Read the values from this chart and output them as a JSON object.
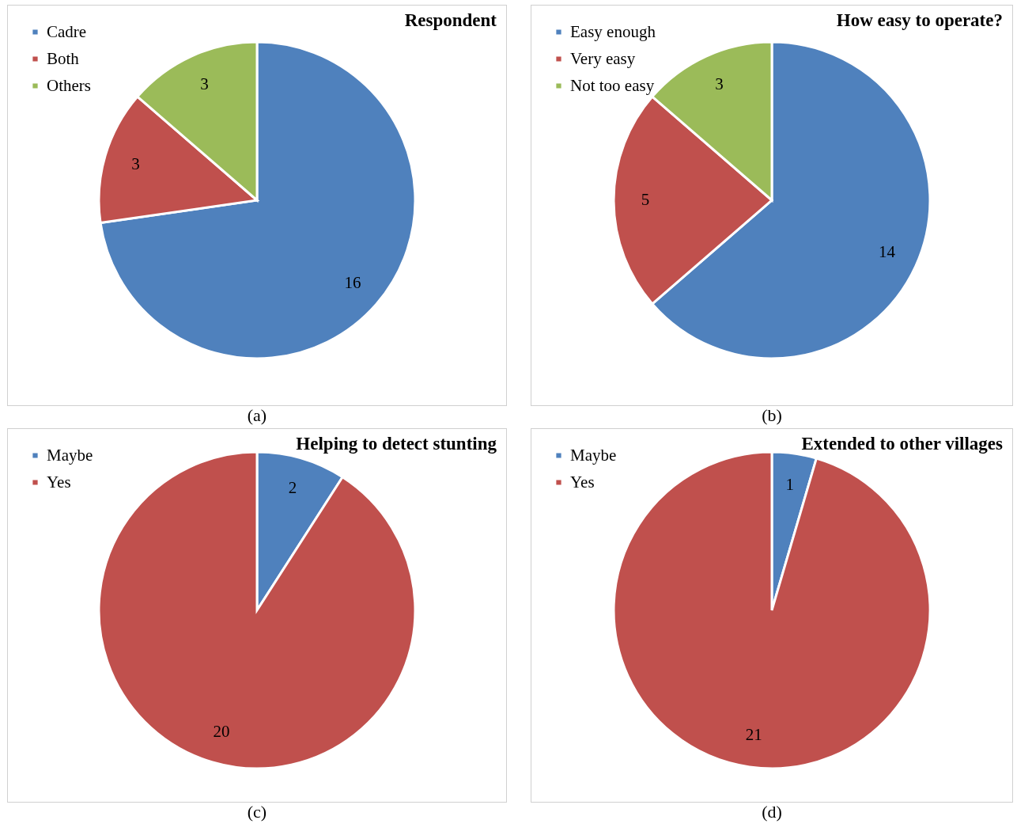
{
  "chart_data": [
    {
      "type": "pie",
      "title": "Respondent",
      "categories": [
        "Cadre",
        "Both",
        "Others"
      ],
      "values": [
        16,
        3,
        3
      ],
      "colors": [
        "#4f81bd",
        "#c0504d",
        "#9bbb59"
      ],
      "data_labels": true,
      "legend": "top left",
      "annotations": [
        "(a)"
      ]
    },
    {
      "type": "pie",
      "title": "How easy to operate?",
      "categories": [
        "Easy enough",
        "Very easy",
        "Not too easy"
      ],
      "values": [
        14,
        5,
        3
      ],
      "colors": [
        "#4f81bd",
        "#c0504d",
        "#9bbb59"
      ],
      "data_labels": true,
      "legend": "top left",
      "annotations": [
        "(b)"
      ]
    },
    {
      "type": "pie",
      "title": "Helping to detect stunting",
      "categories": [
        "Maybe",
        "Yes"
      ],
      "values": [
        2,
        20
      ],
      "colors": [
        "#4f81bd",
        "#c0504d"
      ],
      "data_labels": true,
      "legend": "top left",
      "annotations": [
        "(c)"
      ]
    },
    {
      "type": "pie",
      "title": "Extended to other villages",
      "categories": [
        "Maybe",
        "Yes"
      ],
      "values": [
        1,
        21
      ],
      "colors": [
        "#4f81bd",
        "#c0504d"
      ],
      "data_labels": true,
      "legend": "top left",
      "annotations": [
        "(d)"
      ]
    }
  ]
}
